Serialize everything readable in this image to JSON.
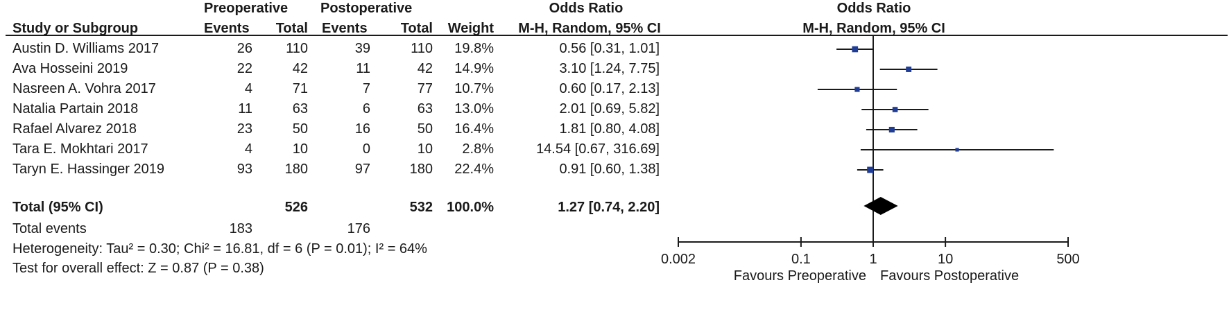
{
  "table": {
    "group_headers": {
      "pre": "Preoperative",
      "post": "Postoperative",
      "or": "Odds Ratio",
      "plot": "Odds Ratio"
    },
    "col_headers": {
      "study": "Study or Subgroup",
      "pre_events": "Events",
      "pre_total": "Total",
      "post_events": "Events",
      "post_total": "Total",
      "weight": "Weight",
      "or_method": "M-H, Random, 95% CI",
      "plot_method": "M-H, Random, 95% CI"
    },
    "rows": [
      {
        "study": "Austin D. Williams 2017",
        "pre_events": "26",
        "pre_total": "110",
        "post_events": "39",
        "post_total": "110",
        "weight": "19.8%",
        "or_text": "0.56 [0.31, 1.01]"
      },
      {
        "study": "Ava Hosseini 2019",
        "pre_events": "22",
        "pre_total": "42",
        "post_events": "11",
        "post_total": "42",
        "weight": "14.9%",
        "or_text": "3.10 [1.24, 7.75]"
      },
      {
        "study": "Nasreen A. Vohra 2017",
        "pre_events": "4",
        "pre_total": "71",
        "post_events": "7",
        "post_total": "77",
        "weight": "10.7%",
        "or_text": "0.60 [0.17, 2.13]"
      },
      {
        "study": "Natalia Partain 2018",
        "pre_events": "11",
        "pre_total": "63",
        "post_events": "6",
        "post_total": "63",
        "weight": "13.0%",
        "or_text": "2.01 [0.69, 5.82]"
      },
      {
        "study": "Rafael  Alvarez 2018",
        "pre_events": "23",
        "pre_total": "50",
        "post_events": "16",
        "post_total": "50",
        "weight": "16.4%",
        "or_text": "1.81 [0.80, 4.08]"
      },
      {
        "study": "Tara E. Mokhtari 2017",
        "pre_events": "4",
        "pre_total": "10",
        "post_events": "0",
        "post_total": "10",
        "weight": "2.8%",
        "or_text": "14.54 [0.67, 316.69]"
      },
      {
        "study": "Taryn E. Hassinger 2019",
        "pre_events": "93",
        "pre_total": "180",
        "post_events": "97",
        "post_total": "180",
        "weight": "22.4%",
        "or_text": "0.91 [0.60, 1.38]"
      }
    ],
    "total": {
      "label": "Total (95% CI)",
      "pre_total": "526",
      "post_total": "532",
      "weight": "100.0%",
      "or_text": "1.27 [0.74, 2.20]"
    },
    "total_events": {
      "label": "Total events",
      "pre": "183",
      "post": "176"
    },
    "heterogeneity": "Heterogeneity: Tau² = 0.30; Chi² = 16.81, df = 6 (P = 0.01); I² = 64%",
    "overall_effect": "Test for overall effect: Z = 0.87 (P = 0.38)"
  },
  "chart_data": {
    "type": "scatter",
    "subtype": "forest",
    "x_scale": "log",
    "xlim": [
      0.002,
      500
    ],
    "x_ticks": [
      "0.002",
      "0.1",
      "1",
      "10",
      "500"
    ],
    "reference_line": 1,
    "xlabel_left": "Favours Preoperative",
    "xlabel_right": "Favours Postoperative",
    "marker_color": "#1f3c96",
    "studies": [
      {
        "study": "Austin D. Williams 2017",
        "or": 0.56,
        "ci": [
          0.31,
          1.01
        ],
        "weight": 19.8
      },
      {
        "study": "Ava Hosseini 2019",
        "or": 3.1,
        "ci": [
          1.24,
          7.75
        ],
        "weight": 14.9
      },
      {
        "study": "Nasreen A. Vohra 2017",
        "or": 0.6,
        "ci": [
          0.17,
          2.13
        ],
        "weight": 10.7
      },
      {
        "study": "Natalia Partain 2018",
        "or": 2.01,
        "ci": [
          0.69,
          5.82
        ],
        "weight": 13.0
      },
      {
        "study": "Rafael  Alvarez 2018",
        "or": 1.81,
        "ci": [
          0.8,
          4.08
        ],
        "weight": 16.4
      },
      {
        "study": "Tara E. Mokhtari 2017",
        "or": 14.54,
        "ci": [
          0.67,
          316.69
        ],
        "weight": 2.8
      },
      {
        "study": "Taryn E. Hassinger 2019",
        "or": 0.91,
        "ci": [
          0.6,
          1.38
        ],
        "weight": 22.4
      }
    ],
    "pooled": {
      "or": 1.27,
      "ci": [
        0.74,
        2.2
      ]
    }
  }
}
